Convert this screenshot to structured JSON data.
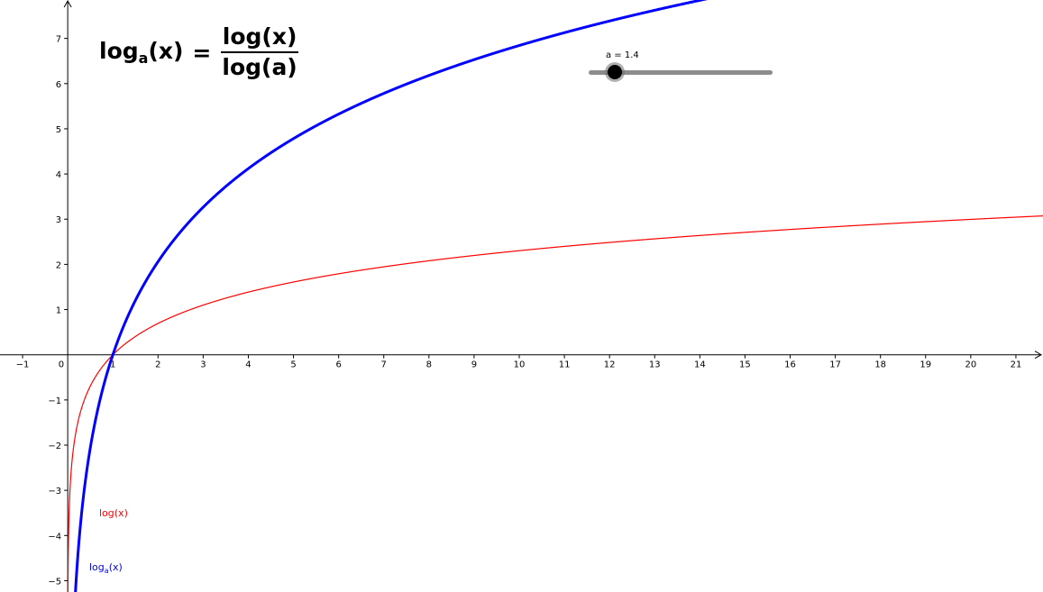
{
  "formula": {
    "lhs_base": "log",
    "lhs_sub": "a",
    "lhs_arg": "(x)",
    "equals": "=",
    "numerator": "log(x)",
    "denominator": "log(a)"
  },
  "slider": {
    "label": "a = 1.4",
    "value": 1.4,
    "fraction": 0.14
  },
  "chart_data": {
    "type": "line",
    "xlim": [
      -1.5,
      21.6
    ],
    "ylim": [
      -5.25,
      7.85
    ],
    "x_ticks": [
      -1,
      0,
      1,
      2,
      3,
      4,
      5,
      6,
      7,
      8,
      9,
      10,
      11,
      12,
      13,
      14,
      15,
      16,
      17,
      18,
      19,
      20,
      21
    ],
    "y_ticks": [
      -5,
      -4,
      -3,
      -2,
      -1,
      1,
      2,
      3,
      4,
      5,
      6,
      7
    ],
    "grid": false,
    "series": [
      {
        "name": "log(x)",
        "function": "ln(x)",
        "color": "#ff0000",
        "x": [
          0.005,
          0.05,
          0.1,
          0.25,
          0.5,
          1,
          2,
          4,
          8,
          16,
          21.6
        ],
        "y": [
          -5.3,
          -3.0,
          -2.3,
          -1.39,
          -0.69,
          0,
          0.69,
          1.39,
          2.08,
          2.77,
          3.07
        ]
      },
      {
        "name": "log_a(x)",
        "function": "ln(x)/ln(1.4)",
        "color": "#0000ff",
        "x": [
          0.21,
          0.25,
          0.5,
          1,
          2,
          4,
          8,
          14.15
        ],
        "y": [
          -4.64,
          -4.12,
          -2.06,
          0,
          2.06,
          4.12,
          6.18,
          7.87
        ]
      }
    ],
    "labels": {
      "log": "log(x)",
      "loga_base": "log",
      "loga_sub": "a",
      "loga_arg": "(x)"
    },
    "colors": {
      "log": "#ff0000",
      "loga": "#0000ff",
      "axis": "#000000"
    }
  }
}
